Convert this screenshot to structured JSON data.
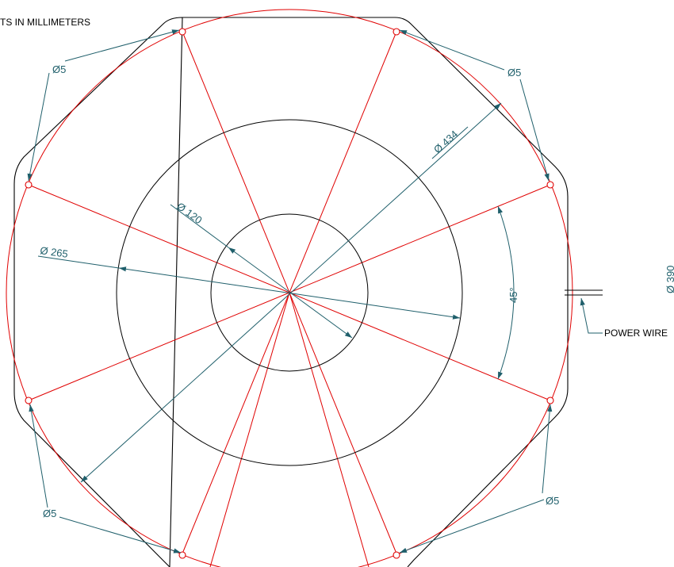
{
  "notes": {
    "units": "TS IN MILLIMETERS",
    "power_wire": "POWER WIRE"
  },
  "dimensions": {
    "outer_diameter": "Ø 434",
    "middle_diameter": "Ø 265",
    "inner_diameter": "Ø 120",
    "angle": "45°",
    "partial_diameter": "Ø 390",
    "hole_top_left": "Ø5",
    "hole_top_right": "Ø5",
    "hole_bottom_left": "Ø5",
    "hole_bottom_right": "Ø5"
  },
  "colors": {
    "outline": "#000000",
    "centerlines": "#e00000",
    "dimensions": "#1f5f6b"
  }
}
